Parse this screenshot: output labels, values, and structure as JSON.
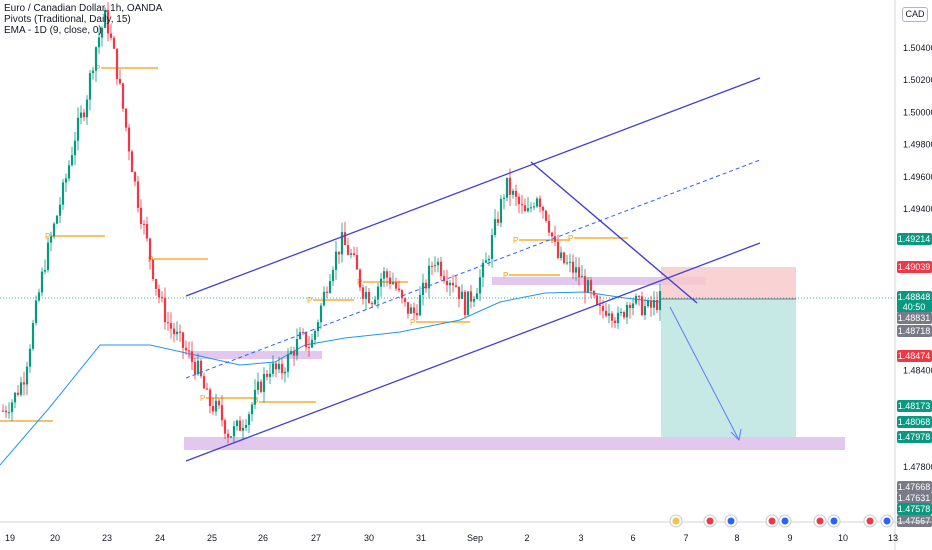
{
  "header": {
    "symbol_line": "Euro / Canadian Dollar, 1h, OANDA",
    "indicator_1": "Pivots (Traditional, Daily, 15)",
    "indicator_2": "EMA - 1D (9, close, 0)",
    "currency_badge": "CAD"
  },
  "chart_data": {
    "type": "candlestick",
    "symbol": "Euro / Canadian Dollar",
    "timeframe": "1h",
    "source": "OANDA",
    "ylim": [
      1.475,
      1.507
    ],
    "y_ticks": [
      "1.50400",
      "1.50200",
      "1.50000",
      "1.49800",
      "1.49600",
      "1.49400",
      "1.48400",
      "1.47800"
    ],
    "x_ticks": [
      "19",
      "20",
      "23",
      "24",
      "25",
      "26",
      "27",
      "30",
      "31",
      "Sep",
      "2",
      "3",
      "6",
      "7",
      "8",
      "9",
      "10",
      "13"
    ],
    "price_labels": [
      {
        "value": "1.49214",
        "color": "#089981"
      },
      {
        "value": "1.49039",
        "color": "#f23645"
      },
      {
        "value": "1.48848",
        "color": "#089981"
      },
      {
        "value": "40:50",
        "color": "#089981"
      },
      {
        "value": "1.48831",
        "color": "#787b86"
      },
      {
        "value": "1.48718",
        "color": "#787b86"
      },
      {
        "value": "1.48474",
        "color": "#f23645"
      },
      {
        "value": "1.48173",
        "color": "#089981"
      },
      {
        "value": "1.48068",
        "color": "#089981"
      },
      {
        "value": "1.47978",
        "color": "#089981"
      },
      {
        "value": "1.47668",
        "color": "#787b86"
      },
      {
        "value": "1.47631",
        "color": "#787b86"
      },
      {
        "value": "1.47578",
        "color": "#089981"
      },
      {
        "value": "1.47567",
        "color": "#787b86"
      }
    ],
    "pivot_label": "P",
    "series": [
      {
        "name": "Euro / Canadian Dollar",
        "kind": "candles",
        "close_path": [
          1.4815,
          1.4822,
          1.4835,
          1.487,
          1.4905,
          1.493,
          1.4955,
          1.4985,
          1.5005,
          1.504,
          1.506,
          1.503,
          1.499,
          1.495,
          1.492,
          1.489,
          1.487,
          1.486,
          1.485,
          1.484,
          1.482,
          1.4815,
          1.48,
          1.4805,
          1.4815,
          1.483,
          1.4842,
          1.4838,
          1.485,
          1.486,
          1.4855,
          1.488,
          1.4905,
          1.492,
          1.491,
          1.489,
          1.4885,
          1.49,
          1.4895,
          1.488,
          1.4875,
          1.489,
          1.491,
          1.49,
          1.4895,
          1.488,
          1.489,
          1.4905,
          1.493,
          1.4955,
          1.4945,
          1.4935,
          1.495,
          1.4935,
          1.491,
          1.4905,
          1.49,
          1.489,
          1.4875,
          1.488,
          1.487,
          1.4885,
          1.488,
          1.4878,
          1.4884
        ]
      },
      {
        "name": "EMA - 1D (9, close, 0)",
        "kind": "line",
        "color": "#2196f3"
      }
    ],
    "annotations": [
      "ascending channel",
      "descending trendline",
      "support zone 1.4790",
      "resistance zone 1.4890",
      "short position: entry 1.48848, stop 1.49039, target 1.47978"
    ]
  }
}
